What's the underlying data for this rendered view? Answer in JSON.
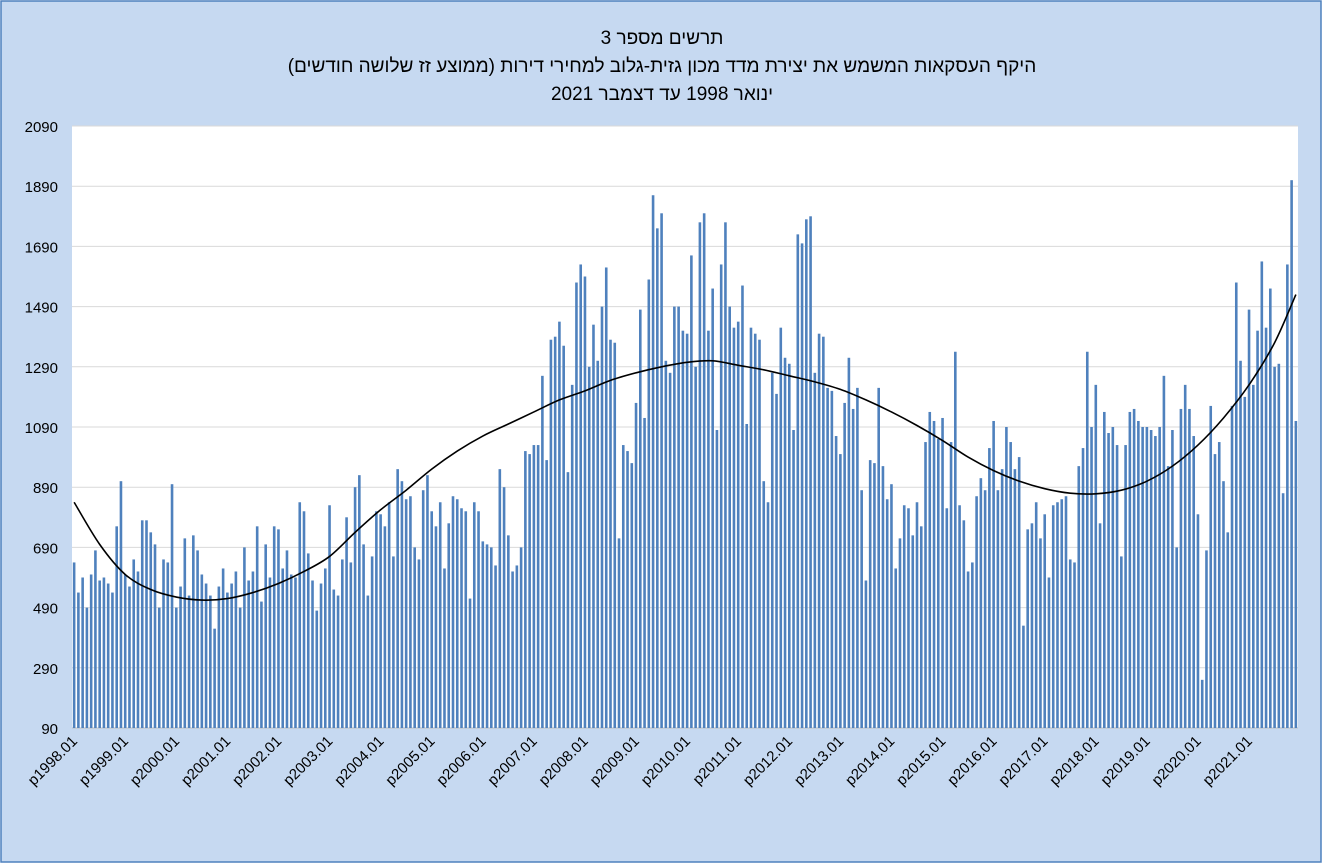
{
  "chart_data": {
    "type": "bar",
    "title": "תרשים מספר 3",
    "subtitle": [
      "היקף העסקאות המשמש את יצירת מדד מכון גזית-גלוב למחירי דירות (ממוצע זז שלושה חודשים)",
      "ינואר 1998 עד דצמבר 2021"
    ],
    "categories": [
      "p1998.01",
      null,
      null,
      null,
      null,
      null,
      null,
      null,
      null,
      null,
      null,
      null,
      "p1999.01",
      null,
      null,
      null,
      null,
      null,
      null,
      null,
      null,
      null,
      null,
      null,
      "p2000.01",
      null,
      null,
      null,
      null,
      null,
      null,
      null,
      null,
      null,
      null,
      null,
      "p2001.01",
      null,
      null,
      null,
      null,
      null,
      null,
      null,
      null,
      null,
      null,
      null,
      "p2002.01",
      null,
      null,
      null,
      null,
      null,
      null,
      null,
      null,
      null,
      null,
      null,
      "p2003.01",
      null,
      null,
      null,
      null,
      null,
      null,
      null,
      null,
      null,
      null,
      null,
      "p2004.01",
      null,
      null,
      null,
      null,
      null,
      null,
      null,
      null,
      null,
      null,
      null,
      "p2005.01",
      null,
      null,
      null,
      null,
      null,
      null,
      null,
      null,
      null,
      null,
      null,
      "p2006.01",
      null,
      null,
      null,
      null,
      null,
      null,
      null,
      null,
      null,
      null,
      null,
      "p2007.01",
      null,
      null,
      null,
      null,
      null,
      null,
      null,
      null,
      null,
      null,
      null,
      "p2008.01",
      null,
      null,
      null,
      null,
      null,
      null,
      null,
      null,
      null,
      null,
      null,
      "p2009.01",
      null,
      null,
      null,
      null,
      null,
      null,
      null,
      null,
      null,
      null,
      null,
      "p2010.01",
      null,
      null,
      null,
      null,
      null,
      null,
      null,
      null,
      null,
      null,
      null,
      "p2011.01",
      null,
      null,
      null,
      null,
      null,
      null,
      null,
      null,
      null,
      null,
      null,
      "p2012.01",
      null,
      null,
      null,
      null,
      null,
      null,
      null,
      null,
      null,
      null,
      null,
      "p2013.01",
      null,
      null,
      null,
      null,
      null,
      null,
      null,
      null,
      null,
      null,
      null,
      "p2014.01",
      null,
      null,
      null,
      null,
      null,
      null,
      null,
      null,
      null,
      null,
      null,
      "p2015.01",
      null,
      null,
      null,
      null,
      null,
      null,
      null,
      null,
      null,
      null,
      null,
      "p2016.01",
      null,
      null,
      null,
      null,
      null,
      null,
      null,
      null,
      null,
      null,
      null,
      "p2017.01",
      null,
      null,
      null,
      null,
      null,
      null,
      null,
      null,
      null,
      null,
      null,
      "p2018.01",
      null,
      null,
      null,
      null,
      null,
      null,
      null,
      null,
      null,
      null,
      null,
      "p2019.01",
      null,
      null,
      null,
      null,
      null,
      null,
      null,
      null,
      null,
      null,
      null,
      "p2020.01",
      null,
      null,
      null,
      null,
      null,
      null,
      null,
      null,
      null,
      null,
      null,
      "p2021.01",
      null,
      null,
      null,
      null,
      null,
      null,
      null,
      null,
      null,
      null,
      null
    ],
    "values": [
      640,
      540,
      590,
      490,
      600,
      680,
      580,
      590,
      570,
      540,
      760,
      910,
      600,
      560,
      650,
      610,
      780,
      780,
      740,
      700,
      490,
      650,
      640,
      900,
      490,
      560,
      720,
      530,
      730,
      680,
      600,
      570,
      530,
      420,
      560,
      620,
      540,
      570,
      610,
      490,
      690,
      580,
      610,
      760,
      510,
      700,
      590,
      760,
      750,
      620,
      680,
      600,
      590,
      840,
      810,
      670,
      580,
      480,
      570,
      620,
      830,
      550,
      530,
      650,
      790,
      640,
      890,
      930,
      700,
      530,
      660,
      810,
      800,
      760,
      840,
      660,
      950,
      910,
      850,
      860,
      690,
      650,
      880,
      930,
      810,
      760,
      840,
      620,
      770,
      860,
      850,
      820,
      810,
      520,
      840,
      810,
      710,
      700,
      690,
      630,
      950,
      890,
      730,
      610,
      630,
      690,
      1010,
      1000,
      1030,
      1030,
      1260,
      980,
      1380,
      1390,
      1440,
      1360,
      940,
      1230,
      1570,
      1630,
      1590,
      1290,
      1430,
      1310,
      1490,
      1620,
      1380,
      1370,
      720,
      1030,
      1010,
      970,
      1170,
      1480,
      1120,
      1580,
      1860,
      1750,
      1800,
      1310,
      1270,
      1490,
      1490,
      1410,
      1400,
      1660,
      1290,
      1770,
      1800,
      1410,
      1550,
      1080,
      1630,
      1770,
      1490,
      1420,
      1440,
      1560,
      1100,
      1420,
      1400,
      1380,
      910,
      840,
      1270,
      1200,
      1420,
      1320,
      1300,
      1080,
      1730,
      1700,
      1780,
      1790,
      1270,
      1400,
      1390,
      1220,
      1210,
      1060,
      1000,
      1170,
      1320,
      1150,
      1220,
      880,
      580,
      980,
      970,
      1220,
      960,
      850,
      900,
      620,
      720,
      830,
      820,
      730,
      840,
      760,
      1040,
      1140,
      1110,
      1050,
      1120,
      820,
      1040,
      1340,
      830,
      780,
      610,
      640,
      860,
      920,
      880,
      1020,
      1110,
      880,
      950,
      1090,
      1040,
      950,
      990,
      430,
      750,
      770,
      840,
      720,
      800,
      590,
      830,
      840,
      850,
      860,
      650,
      640,
      960,
      1020,
      1340,
      1090,
      1230,
      770,
      1140,
      1070,
      1090,
      1030,
      660,
      1030,
      1140,
      1150,
      1110,
      1090,
      1090,
      1080,
      1060,
      1090,
      1260,
      960,
      1080,
      690,
      1150,
      1230,
      1150,
      1060,
      800,
      250,
      680,
      1160,
      1000,
      1040,
      910,
      740,
      1160,
      1570,
      1310,
      1190,
      1480,
      1230,
      1410,
      1640,
      1420,
      1550,
      1290,
      1300,
      870,
      1630,
      1910,
      1110
    ],
    "color": "#4f81bd",
    "trend": {
      "type": "line",
      "color": "#000000",
      "x": [
        0,
        6,
        12,
        18,
        24,
        30,
        36,
        42,
        48,
        54,
        60,
        66,
        72,
        78,
        84,
        90,
        96,
        102,
        108,
        114,
        120,
        126,
        132,
        138,
        144,
        150,
        156,
        162,
        168,
        174,
        180,
        186,
        192,
        198,
        204,
        210,
        216,
        222,
        228,
        234,
        240,
        246,
        252,
        258,
        264,
        270,
        276,
        282,
        287
      ],
      "values": [
        840,
        700,
        600,
        550,
        525,
        515,
        520,
        540,
        570,
        610,
        660,
        740,
        815,
        880,
        950,
        1010,
        1060,
        1100,
        1140,
        1180,
        1210,
        1245,
        1270,
        1290,
        1305,
        1310,
        1295,
        1280,
        1260,
        1240,
        1215,
        1180,
        1140,
        1095,
        1045,
        990,
        945,
        910,
        885,
        870,
        868,
        880,
        910,
        960,
        1030,
        1120,
        1230,
        1370,
        1530
      ]
    },
    "ylim": [
      90,
      2090
    ],
    "yticks": [
      90,
      290,
      490,
      690,
      890,
      1090,
      1290,
      1490,
      1690,
      1890,
      2090
    ],
    "grid": true
  }
}
